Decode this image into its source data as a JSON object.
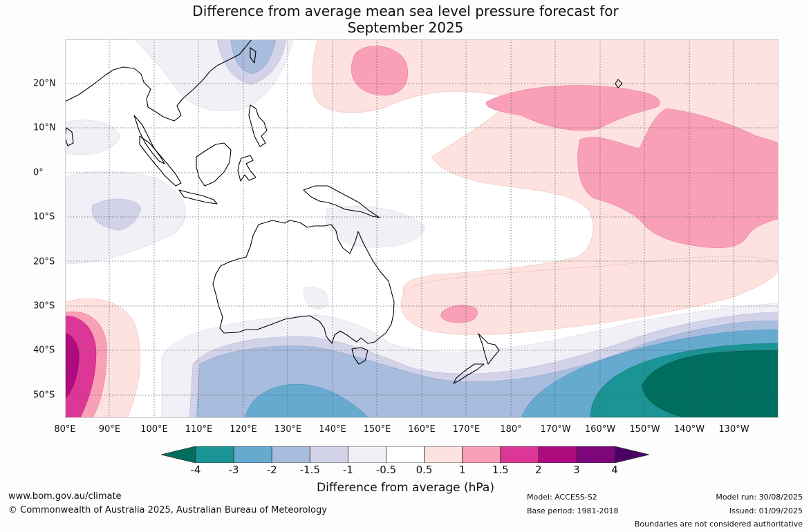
{
  "title_line1": "Difference from average mean sea level pressure forecast for",
  "title_line2": "September 2025",
  "lon_labels": [
    "80°E",
    "90°E",
    "100°E",
    "110°E",
    "120°E",
    "130°E",
    "140°E",
    "150°E",
    "160°E",
    "170°E",
    "180°",
    "170°W",
    "160°W",
    "150°W",
    "140°W",
    "130°W"
  ],
  "lat_labels": [
    "20°N",
    "10°N",
    "0°",
    "10°S",
    "20°S",
    "30°S",
    "40°S",
    "50°S"
  ],
  "colorbar": {
    "colors": [
      "#006e5e",
      "#1a9494",
      "#66aad0",
      "#a8bcde",
      "#d2d3e8",
      "#f2eff6",
      "#ffffff",
      "#fde2df",
      "#f9a0b8",
      "#dc3796",
      "#ad0b7e",
      "#7d067b",
      "#4b0066"
    ],
    "labels": [
      "-4",
      "-3",
      "-2",
      "-1.5",
      "-1",
      "-0.5",
      "0.5",
      "1",
      "1.5",
      "2",
      "3",
      "4"
    ],
    "title": "Difference from average (hPa)"
  },
  "footer": {
    "url": "www.bom.gov.au/climate",
    "copyright": "© Commonwealth of Australia 2025, Australian Bureau of Meteorology",
    "model": "Model: ACCESS-S2",
    "base_period": "Base period: 1981-2018",
    "model_run": "Model run: 30/08/2025",
    "issued": "Issued: 01/09/2025",
    "disclaimer": "Boundaries are not considered authoritative"
  }
}
